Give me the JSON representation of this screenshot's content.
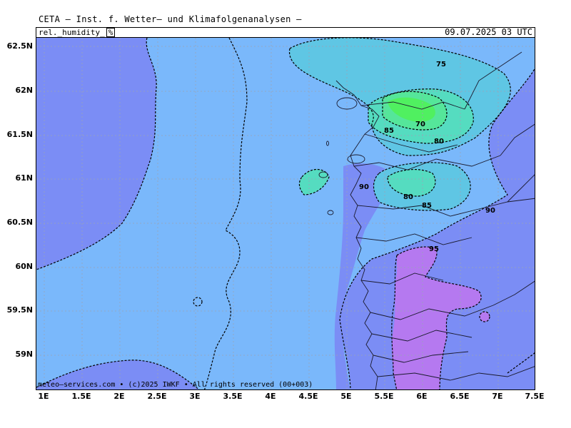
{
  "header": {
    "title": "CETA — Inst. f. Wetter— und Klimafolgenanalysen —",
    "parameter": "rel._humidity_",
    "unit": "%",
    "datetime": "09.07.2025 03 UTC"
  },
  "axes": {
    "y_labels": [
      "62.5N",
      "62N",
      "61.5N",
      "61N",
      "60.5N",
      "60N",
      "59.5N",
      "59N"
    ],
    "x_labels": [
      "1E",
      "1.5E",
      "2E",
      "2.5E",
      "3E",
      "3.5E",
      "4E",
      "4.5E",
      "5E",
      "5.5E",
      "6E",
      "6.5E",
      "7E",
      "7.5E"
    ]
  },
  "contour_labels": [
    "75",
    "70",
    "80",
    "85",
    "90",
    "80",
    "85",
    "90",
    "95"
  ],
  "legend_colors": {
    "rh_95_100": "#b579f0",
    "rh_90_95": "#7b8df5",
    "rh_85_90": "#7ab8fb",
    "rh_80_85": "#5fc6e4",
    "rh_75_80": "#55dcc0",
    "rh_70_75": "#55e69a",
    "rh_below_70": "#50f060"
  },
  "footer": {
    "copyright": "meteo—services.com • (c)2025 IWKF • All rights reserved (00+003)"
  }
}
